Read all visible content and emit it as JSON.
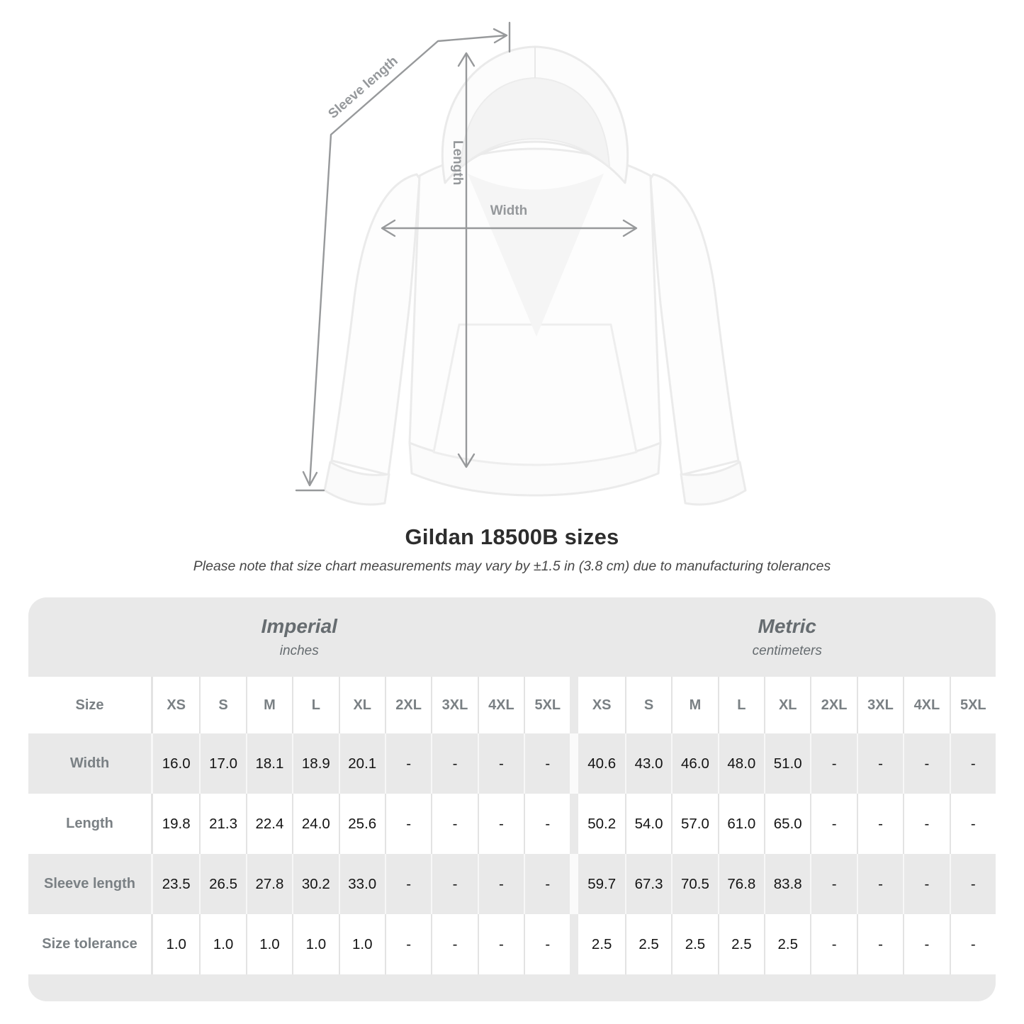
{
  "diagram": {
    "labels": {
      "sleeve_length": "Sleeve length",
      "length": "Length",
      "width": "Width"
    },
    "colors": {
      "arrow": "#97999b",
      "garment_outline": "#ebebeb"
    }
  },
  "title": "Gildan 18500B sizes",
  "subtitle": "Please note that size chart measurements may vary by ±1.5 in (3.8 cm) due to manufacturing tolerances",
  "colors": {
    "row_shade": "#e9e9e9",
    "heading_text": "#7a8084",
    "group_text": "#666c70",
    "value_text": "#141414",
    "title_text": "#2d2d2d"
  },
  "chart_data": {
    "type": "table",
    "title": "Gildan 18500B sizes",
    "note": "Please note that size chart measurements may vary by ±1.5 in (3.8 cm) due to manufacturing tolerances",
    "unit_groups": [
      {
        "label": "Imperial",
        "unit": "inches"
      },
      {
        "label": "Metric",
        "unit": "centimeters"
      }
    ],
    "size_header": "Size",
    "sizes": [
      "XS",
      "S",
      "M",
      "L",
      "XL",
      "2XL",
      "3XL",
      "4XL",
      "5XL"
    ],
    "rows": [
      {
        "label": "Width",
        "imperial": [
          "16.0",
          "17.0",
          "18.1",
          "18.9",
          "20.1",
          "-",
          "-",
          "-",
          "-"
        ],
        "metric": [
          "40.6",
          "43.0",
          "46.0",
          "48.0",
          "51.0",
          "-",
          "-",
          "-",
          "-"
        ]
      },
      {
        "label": "Length",
        "imperial": [
          "19.8",
          "21.3",
          "22.4",
          "24.0",
          "25.6",
          "-",
          "-",
          "-",
          "-"
        ],
        "metric": [
          "50.2",
          "54.0",
          "57.0",
          "61.0",
          "65.0",
          "-",
          "-",
          "-",
          "-"
        ]
      },
      {
        "label": "Sleeve length",
        "imperial": [
          "23.5",
          "26.5",
          "27.8",
          "30.2",
          "33.0",
          "-",
          "-",
          "-",
          "-"
        ],
        "metric": [
          "59.7",
          "67.3",
          "70.5",
          "76.8",
          "83.8",
          "-",
          "-",
          "-",
          "-"
        ]
      },
      {
        "label": "Size tolerance",
        "imperial": [
          "1.0",
          "1.0",
          "1.0",
          "1.0",
          "1.0",
          "-",
          "-",
          "-",
          "-"
        ],
        "metric": [
          "2.5",
          "2.5",
          "2.5",
          "2.5",
          "2.5",
          "-",
          "-",
          "-",
          "-"
        ]
      }
    ]
  }
}
